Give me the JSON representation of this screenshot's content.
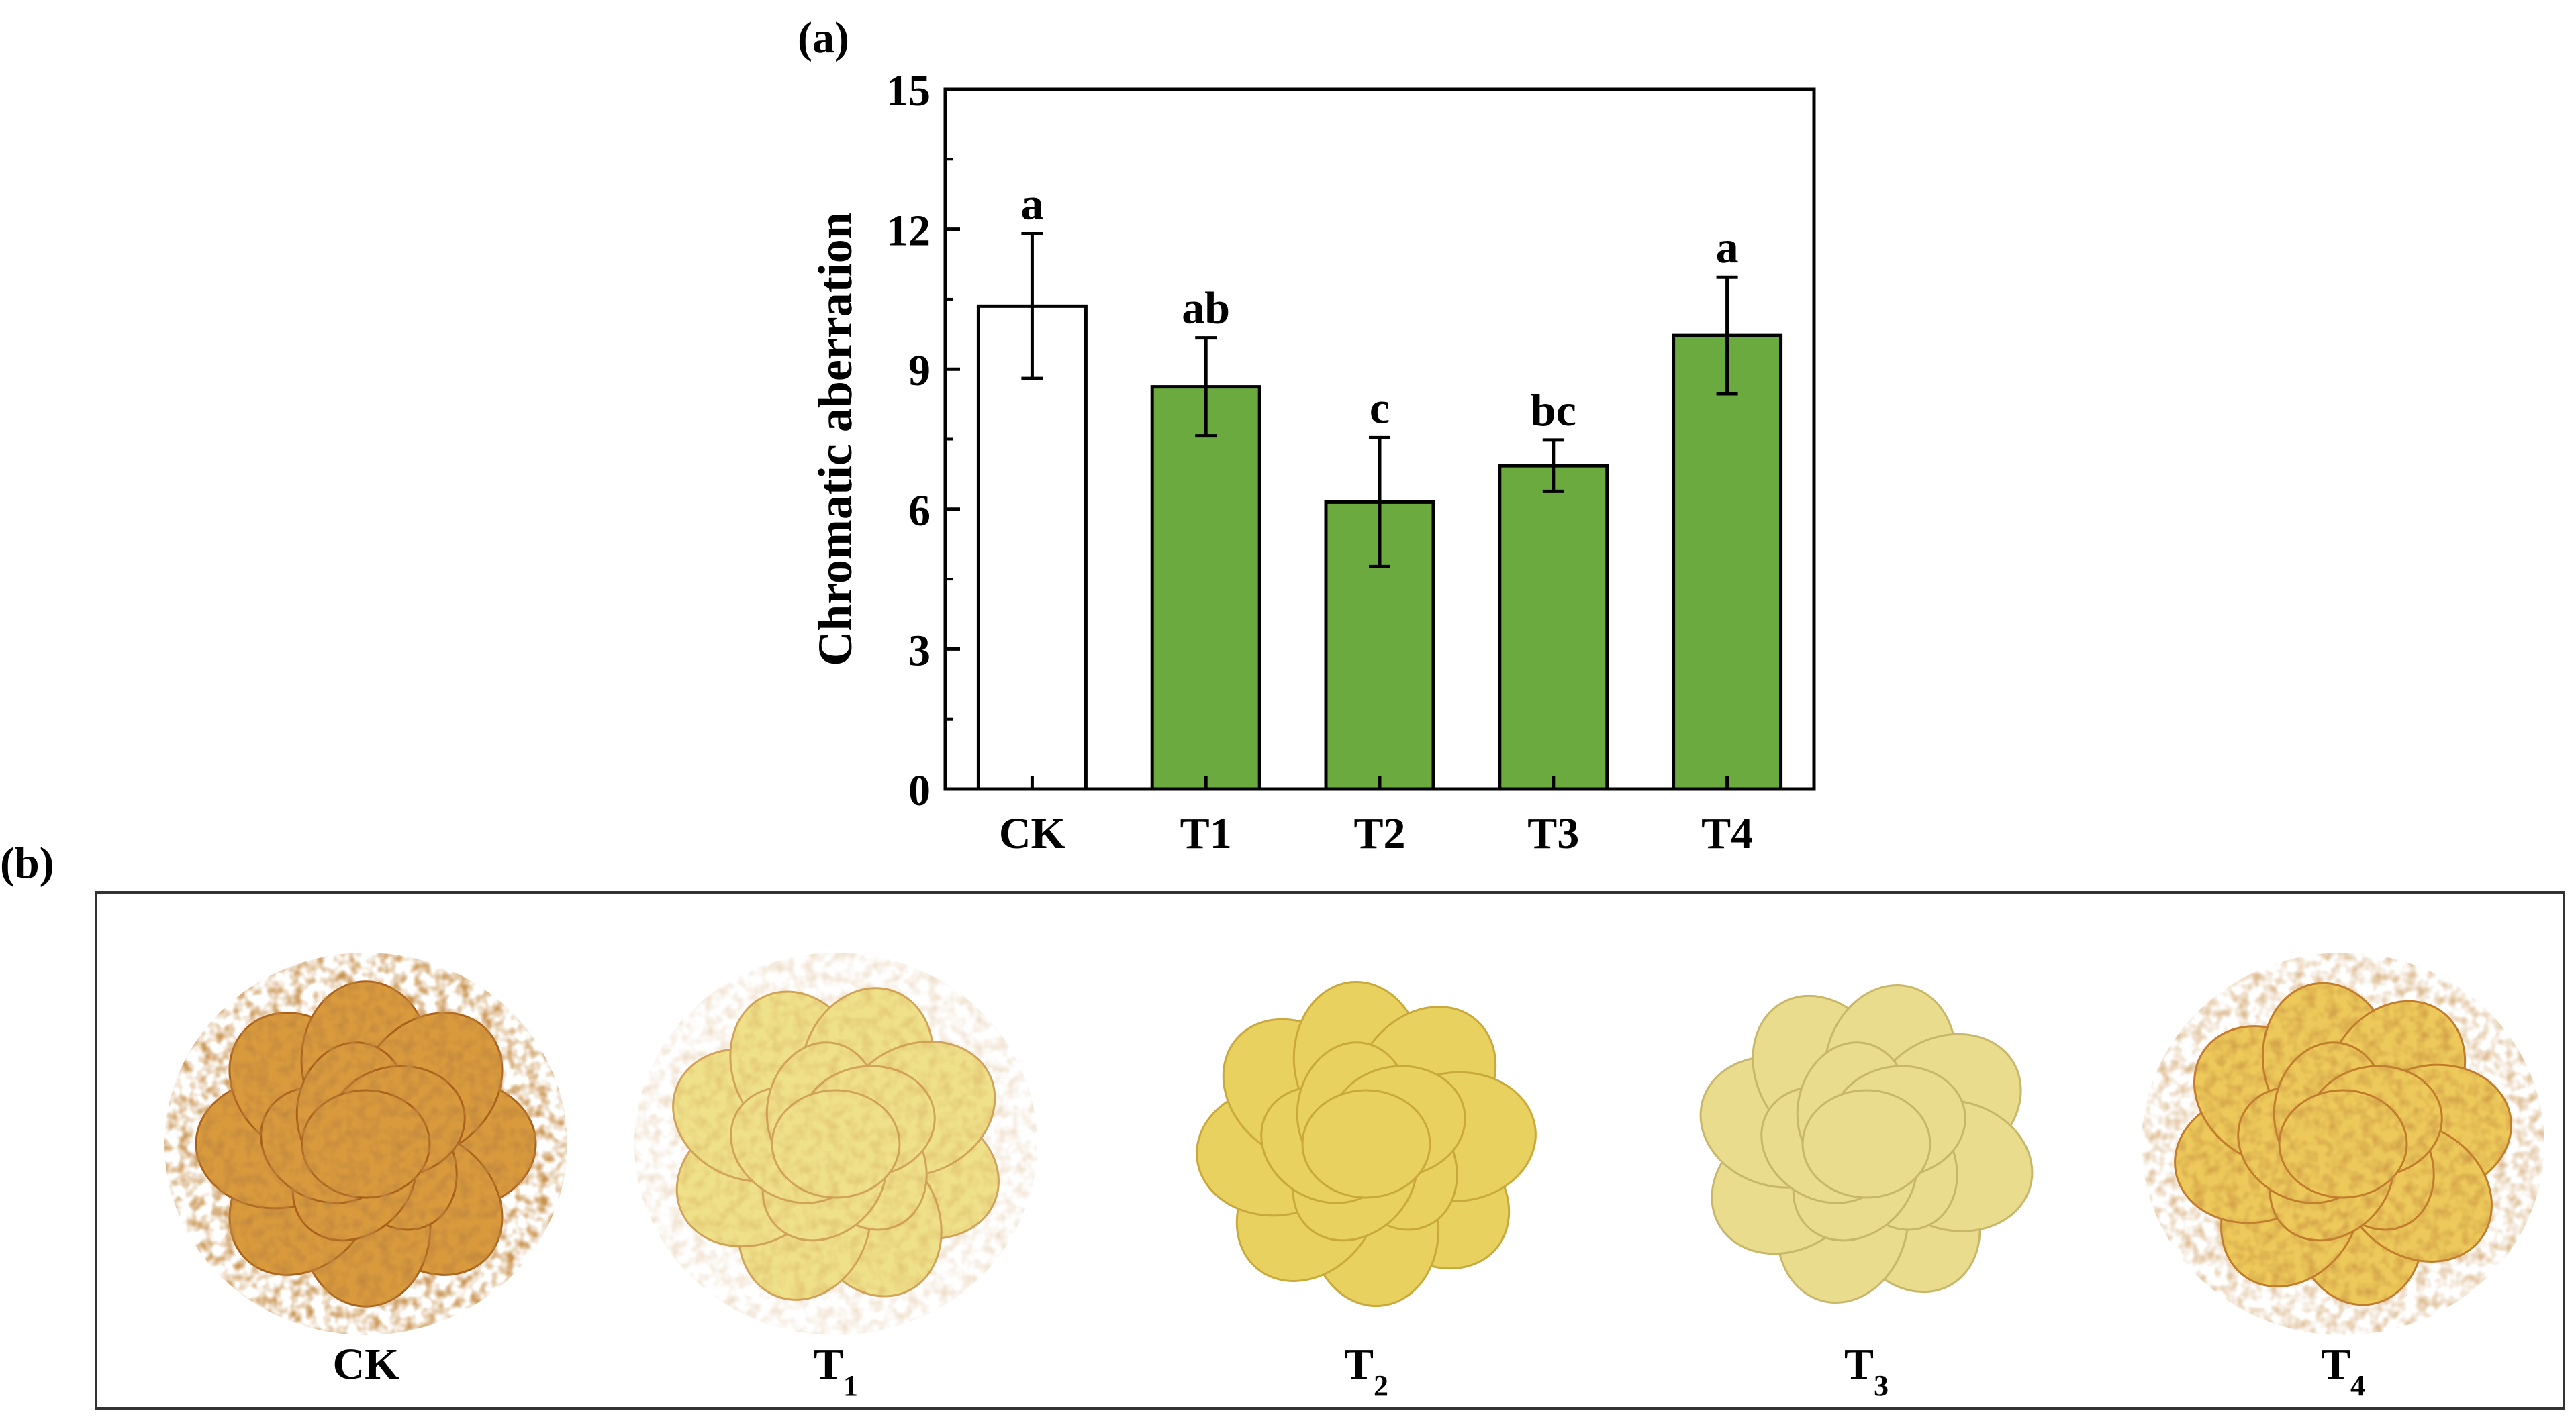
{
  "panel_a_label": "(a)",
  "panel_b_label": "(b)",
  "chart_data": {
    "type": "bar",
    "categories": [
      "CK",
      "T1",
      "T2",
      "T3",
      "T4"
    ],
    "values": [
      10.35,
      8.62,
      6.15,
      6.93,
      9.72
    ],
    "errors": [
      1.55,
      1.05,
      1.38,
      0.55,
      1.25
    ],
    "significance": [
      "a",
      "ab",
      "c",
      "bc",
      "a"
    ],
    "ylabel": "Chromatic aberration",
    "ylim": [
      0,
      15
    ],
    "yticks": [
      0,
      3,
      6,
      9,
      12,
      15
    ],
    "colors": {
      "control": "#ffffff",
      "treatment": "#6aaa3f",
      "outline": "#000000"
    }
  },
  "photos": [
    {
      "label": "CK",
      "sub": "",
      "tone": "browned"
    },
    {
      "label": "T",
      "sub": "1",
      "tone": "light-yellow"
    },
    {
      "label": "T",
      "sub": "2",
      "tone": "yellow"
    },
    {
      "label": "T",
      "sub": "3",
      "tone": "pale-yellow"
    },
    {
      "label": "T",
      "sub": "4",
      "tone": "yellow-browned"
    }
  ]
}
